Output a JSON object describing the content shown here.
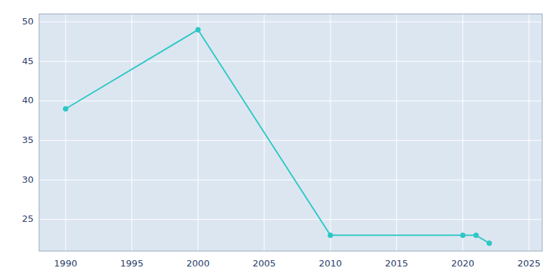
{
  "chart_data": {
    "type": "line",
    "x": [
      1990,
      2000,
      2010,
      2020,
      2021,
      2022
    ],
    "values": [
      39,
      49,
      23,
      23,
      23,
      22
    ],
    "color": "#2ec8c4",
    "marker": "o",
    "xlim": [
      1988,
      2026
    ],
    "ylim": [
      21,
      51
    ],
    "xticks": [
      1990,
      1995,
      2000,
      2005,
      2010,
      2015,
      2020,
      2025
    ],
    "yticks": [
      25,
      30,
      35,
      40,
      45,
      50
    ],
    "grid": true
  }
}
